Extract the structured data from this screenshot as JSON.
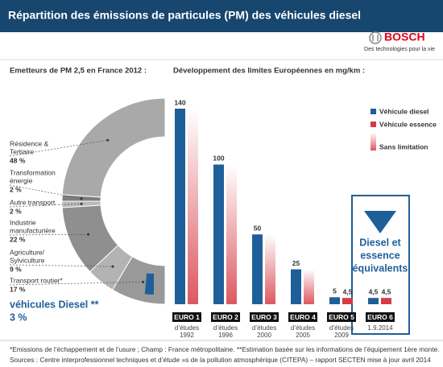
{
  "header": {
    "title": "Répartition des émissions de particules (PM) des véhicules diesel"
  },
  "logo": {
    "brand": "BOSCH",
    "tagline": "Des technologies pour la vie"
  },
  "chart_data": [
    {
      "type": "half-donut",
      "title": "Emetteurs de PM 2,5 en France 2012 :",
      "categories": [
        [
          "Résidence &",
          "Tertiaire"
        ],
        [
          "Transformation",
          "énergie"
        ],
        [
          "Autre transport"
        ],
        [
          "Industrie",
          "manufacturière"
        ],
        [
          "Agriculture/",
          "Sylviculture"
        ],
        [
          "Transport routier*"
        ]
      ],
      "values": [
        48,
        2,
        2,
        22,
        9,
        17
      ],
      "value_labels": [
        "48 %",
        "2 %",
        "2 %",
        "22 %",
        "9 %",
        "17 %"
      ],
      "colors": [
        "#a9a9a9",
        "#7d7d7d",
        "#b9b9b9",
        "#8f8f8f",
        "#b3b3b3",
        "#999999"
      ],
      "highlight": {
        "name": "véhicules Diesel **",
        "value": 3,
        "value_label": "3 %",
        "color": "#1f5f99"
      }
    },
    {
      "type": "bar",
      "title": "Développement des limites Européennes en mg/km :",
      "categories": [
        "EURO 1",
        "EURO 2",
        "EURO 3",
        "EURO 4",
        "EURO 5",
        "EURO 6"
      ],
      "dates": [
        [
          "d’études",
          "1992"
        ],
        [
          "d’études",
          "1996"
        ],
        [
          "d’études",
          "2000"
        ],
        [
          "d’études",
          "2005"
        ],
        [
          "d’études",
          "2009"
        ],
        [
          "1.9.2014"
        ]
      ],
      "series": [
        {
          "name": "Véhicule diesel",
          "color": "#1f5f99",
          "values": [
            140,
            100,
            50,
            25,
            5,
            4.5
          ],
          "value_labels": [
            "140",
            "100",
            "50",
            "25",
            "5",
            "4,5"
          ]
        },
        {
          "name": "Véhicule essence",
          "color": "#d63b44",
          "values": [
            null,
            null,
            null,
            null,
            4.5,
            4.5
          ],
          "value_labels": [
            null,
            null,
            null,
            null,
            "4,5",
            "4,5"
          ]
        }
      ],
      "no_limit_label": "Sans limitation",
      "highlight_text": [
        "Diesel et",
        "essence",
        "équivalents"
      ]
    }
  ],
  "footnotes": [
    "*Emissions de l’échappement et de l’usure ; Champ : France métropolitaine. **Estimation basée sur les informations de l’équipement 1ère monte.",
    "Sources : Centre interprofessionnel techniques et d’étude »s de la pollution atmosphérique (CITEPA) – rapport SECTEN mise à jour avril 2014"
  ]
}
